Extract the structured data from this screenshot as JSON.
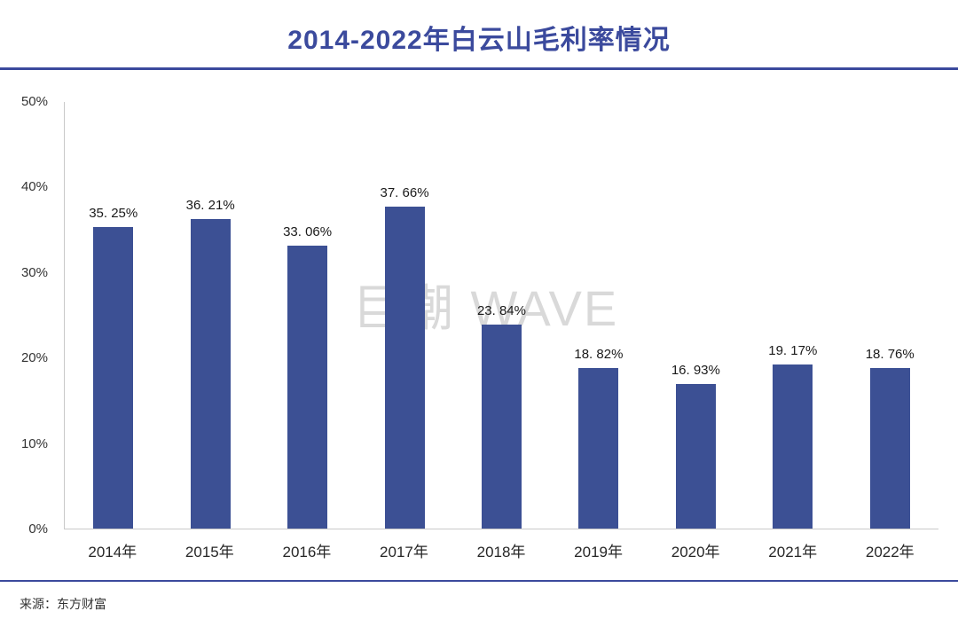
{
  "page": {
    "title": "2014-2022年白云山毛利率情况",
    "watermark": "巨潮 WAVE",
    "source": "来源：东方财富"
  },
  "colors": {
    "bar": "#3C5094",
    "accent": "#3B4A9D",
    "axis_line": "#C9C9C9",
    "watermark": "#D9D9D9",
    "label_text": "#1A1A1A"
  },
  "chart_data": {
    "type": "bar",
    "title": "2014-2022年白云山毛利率情况",
    "categories": [
      "2014年",
      "2015年",
      "2016年",
      "2017年",
      "2018年",
      "2019年",
      "2020年",
      "2021年",
      "2022年"
    ],
    "values": [
      35.25,
      36.21,
      33.06,
      37.66,
      23.84,
      18.82,
      16.93,
      19.17,
      18.76
    ],
    "value_labels": [
      "35. 25%",
      "36. 21%",
      "33. 06%",
      "37. 66%",
      "23. 84%",
      "18. 82%",
      "16. 93%",
      "19. 17%",
      "18. 76%"
    ],
    "xlabel": "",
    "ylabel": "",
    "ylim": [
      0,
      50
    ],
    "yticks": [
      "0%",
      "10%",
      "20%",
      "30%",
      "40%",
      "50%"
    ],
    "grid": false,
    "legend": false,
    "watermark": "巨潮 WAVE",
    "source": "来源：东方财富"
  }
}
